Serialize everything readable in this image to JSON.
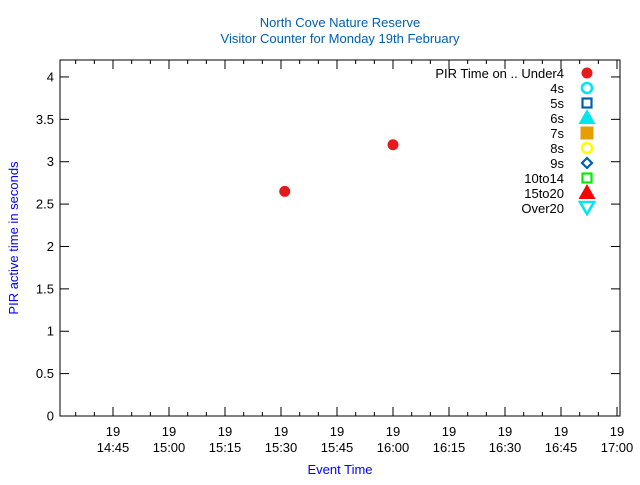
{
  "chart_data": {
    "type": "scatter",
    "title": "North Cove Nature Reserve",
    "subtitle": "Visitor Counter for Monday 19th February",
    "xlabel": "Event Time",
    "ylabel": "PIR active time in seconds",
    "xlim": [
      "14:31",
      "17:01"
    ],
    "ylim": [
      0,
      4.2
    ],
    "x_ticks": [
      "14:45",
      "15:00",
      "15:15",
      "15:30",
      "15:45",
      "16:00",
      "16:15",
      "16:30",
      "16:45",
      "17:00"
    ],
    "x_tick_day": "19",
    "y_ticks": [
      0,
      0.5,
      1,
      1.5,
      2,
      2.5,
      3,
      3.5,
      4
    ],
    "grid": false,
    "legend_placement": "top-right",
    "legend_title": "PIR Time on .. ",
    "series": [
      {
        "name": "Under4",
        "marker": "filled-circle",
        "color": "#e41a1c",
        "points": [
          {
            "x": "15:31",
            "y": 2.65
          },
          {
            "x": "16:00",
            "y": 3.2
          }
        ]
      },
      {
        "name": "4s",
        "marker": "open-circle",
        "color": "#00e5ee",
        "points": []
      },
      {
        "name": "5s",
        "marker": "open-square",
        "color": "#0060ad",
        "points": []
      },
      {
        "name": "6s",
        "marker": "filled-triangle",
        "color": "#00e5ee",
        "points": []
      },
      {
        "name": "7s",
        "marker": "filled-square",
        "color": "#e69f00",
        "points": []
      },
      {
        "name": "8s",
        "marker": "open-circle",
        "color": "#ffff00",
        "points": []
      },
      {
        "name": "9s",
        "marker": "open-diamond",
        "color": "#0060ad",
        "points": []
      },
      {
        "name": "10to14",
        "marker": "open-square",
        "color": "#00ee00",
        "points": []
      },
      {
        "name": "15to20",
        "marker": "filled-triangle",
        "color": "#ff0000",
        "points": []
      },
      {
        "name": "Over20",
        "marker": "open-inverted-triangle",
        "color": "#00e5ee",
        "points": []
      }
    ]
  }
}
